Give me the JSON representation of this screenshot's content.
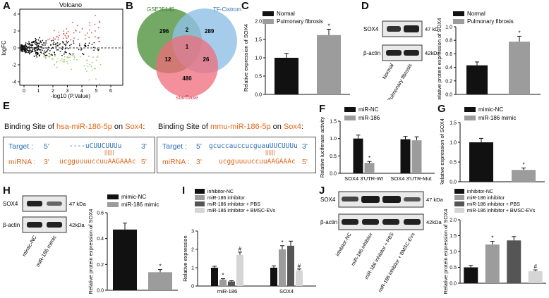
{
  "panels": {
    "A": "A",
    "B": "B",
    "C": "C",
    "D": "D",
    "E": "E",
    "F": "F",
    "G": "G",
    "H": "H",
    "I": "I",
    "J": "J"
  },
  "colors": {
    "black": "#111111",
    "gray": "#9c9c9c",
    "dark_gray": "#555555",
    "light_gray": "#d5d5d5",
    "orange": "#e0661a",
    "blue": "#2f6fb7",
    "green": "#5a9a4a",
    "sky": "#8fc0e6",
    "pink": "#f06b7a"
  },
  "volcano": {
    "title": "Volcano",
    "xlabel": "-log10 (P.Value)",
    "ylabel": "logFC",
    "xticks": [
      "0",
      "1",
      "2",
      "3",
      "4",
      "5",
      "6"
    ],
    "yticks": [
      "4",
      "2",
      "0",
      "-2",
      "-4"
    ]
  },
  "venn": {
    "labels": [
      "GSE35145",
      "TF-Cistrome",
      "starBase"
    ],
    "regions": {
      "a_only": "296",
      "b_only": "289",
      "c_only": "480",
      "ab": "2",
      "ac": "12",
      "bc": "26",
      "abc": "1"
    }
  },
  "blots": {
    "sox4": "SOX4",
    "actin": "β-actin",
    "kda47": "47 kDa",
    "kda42": "42kDa"
  },
  "binding": {
    "left_title_pre": "Binding Site of ",
    "left_title_mirna": "hsa-miR-186-5p",
    "left_title_mid": " on ",
    "left_title_gene": "Sox4",
    ":": ":",
    "right_title_pre": "Binding Site of ",
    "right_title_mirna": "mmu-miR-186-5p",
    "right_title_mid": " on ",
    "right_title_gene": "Sox4",
    "colon": ":",
    "target_label": "Target :",
    "mirna_label": "miRNA :",
    "left_target_5": "5'",
    "left_target_seq": "----uCUUCUUUu",
    "left_target_3": "3'",
    "left_mirna_3": "3'",
    "left_mirna_seq": "ucgguuuuccuuAAGAAAc",
    "left_mirna_5": "5'",
    "right_target_5": "5'",
    "right_target_seq": "gcuccauccucguauUUCUUUu",
    "right_target_3": "3'",
    "right_mirna_3": "3'",
    "right_mirna_seq": "ucgguuuuccuuAAGAAAc",
    "right_mirna_5": "5'",
    "pairs": "| | | | | |"
  },
  "lanes": {
    "D": [
      "Normal",
      "Pulmonary fibrosis"
    ],
    "H": [
      "mimic-NC",
      "miR-186 mimic"
    ],
    "J": [
      "inhibitor-NC",
      "miR-186 inhibitor",
      "miR-186 inhibitor + PBS",
      "miR-186 inhibitor + BMSC-EVs"
    ]
  },
  "chart_data": [
    {
      "id": "C",
      "type": "bar",
      "categories": [
        "Normal",
        "Pulmonary fibrosis"
      ],
      "values": [
        1.0,
        1.62
      ],
      "errors": [
        0.12,
        0.16
      ],
      "ylabel": "Relative expression of SOX4",
      "ylim": [
        0,
        2.0
      ],
      "yticks": [
        "0.0",
        "0.5",
        "1.0",
        "1.5",
        "2.0"
      ],
      "legend": [
        "Normal",
        "Pulmonary fibrosis"
      ],
      "sig": [
        "",
        "*"
      ]
    },
    {
      "id": "D",
      "type": "bar",
      "categories": [
        "Normal",
        "Pulmonary fibrosis"
      ],
      "values": [
        0.43,
        0.78
      ],
      "errors": [
        0.05,
        0.08
      ],
      "ylabel": "Relative protein expression of SOX4",
      "ylim": [
        0,
        1.0
      ],
      "yticks": [
        "0.0",
        "0.2",
        "0.4",
        "0.6",
        "0.8",
        "1.0"
      ],
      "legend": [
        "Normal",
        "Pulmonary fibrosis"
      ],
      "sig": [
        "",
        "*"
      ]
    },
    {
      "id": "F",
      "type": "bar",
      "group_labels": [
        "SOX4 3'UTR-Wt",
        "SOX4 3'UTR-Mut"
      ],
      "series": [
        {
          "name": "miR-NC",
          "values": [
            1.0,
            0.98
          ]
        },
        {
          "name": "miR-186",
          "values": [
            0.3,
            0.95
          ]
        }
      ],
      "errors": [
        [
          0.1,
          0.08
        ],
        [
          0.04,
          0.1
        ]
      ],
      "ylabel": "Relative luciferase activity",
      "ylim": [
        0,
        1.5
      ],
      "yticks": [
        "0.0",
        "0.5",
        "1.0",
        "1.5"
      ],
      "sig": [
        [
          "",
          ""
        ],
        [
          "*",
          ""
        ]
      ]
    },
    {
      "id": "G",
      "type": "bar",
      "categories": [
        "mimic-NC",
        "miR-186 mimic"
      ],
      "values": [
        1.0,
        0.3
      ],
      "errors": [
        0.1,
        0.05
      ],
      "ylabel": "Relative expression of SOX4",
      "ylim": [
        0,
        1.5
      ],
      "yticks": [
        "0.0",
        "0.5",
        "1.0",
        "1.5"
      ],
      "legend": [
        "mimic-NC",
        "miR-186 mimic"
      ],
      "sig": [
        "",
        "*"
      ]
    },
    {
      "id": "H",
      "type": "bar",
      "categories": [
        "mimic-NC",
        "miR-186 mimic"
      ],
      "values": [
        0.47,
        0.14
      ],
      "errors": [
        0.05,
        0.02
      ],
      "ylabel": "Relative protein expression of SOX4",
      "ylim": [
        0,
        0.6
      ],
      "yticks": [
        "0.0",
        "0.2",
        "0.4",
        "0.6"
      ],
      "legend": [
        "mimic-NC",
        "miR-186 mimic"
      ],
      "sig": [
        "",
        "*"
      ]
    },
    {
      "id": "I",
      "type": "bar",
      "group_labels": [
        "miR-186",
        "SOX4"
      ],
      "series": [
        {
          "name": "inhibitor-NC",
          "values": [
            1.0,
            1.0
          ]
        },
        {
          "name": "miR-186 inhibitor",
          "values": [
            0.35,
            2.0
          ]
        },
        {
          "name": "miR-186 inhibitor + PBS",
          "values": [
            0.25,
            2.2
          ]
        },
        {
          "name": "miR-186 inhibitor + BMSC-EVs",
          "values": [
            1.7,
            0.85
          ]
        }
      ],
      "errors": [
        [
          0.08,
          0.1
        ],
        [
          0.05,
          0.2
        ],
        [
          0.04,
          0.25
        ],
        [
          0.15,
          0.08
        ]
      ],
      "ylabel": "Relative expression",
      "ylim": [
        0,
        3
      ],
      "yticks": [
        "0",
        "1",
        "2",
        "3"
      ],
      "sig": [
        [
          "",
          ""
        ],
        [
          "*",
          "*"
        ],
        [
          "",
          ""
        ],
        [
          "#",
          "#"
        ]
      ]
    },
    {
      "id": "J",
      "type": "bar",
      "categories": [
        "inhibitor-NC",
        "miR-186 inhibitor",
        "miR-186 inhibitor + PBS",
        "miR-186 inhibitor + BMSC-EVs"
      ],
      "values": [
        0.5,
        1.22,
        1.35,
        0.38
      ],
      "errors": [
        0.06,
        0.1,
        0.12,
        0.04
      ],
      "ylabel": "Relative protein expression of SOX4",
      "ylim": [
        0,
        2.0
      ],
      "yticks": [
        "0.0",
        "0.5",
        "1.0",
        "1.5",
        "2.0"
      ],
      "legend": [
        "inhibitor-NC",
        "miR-186 inhibitor",
        "miR-186 inhibitor + PBS",
        "miR-186 inhibitor + BMSC-EVs"
      ],
      "sig": [
        "",
        "*",
        "",
        "#"
      ]
    }
  ]
}
